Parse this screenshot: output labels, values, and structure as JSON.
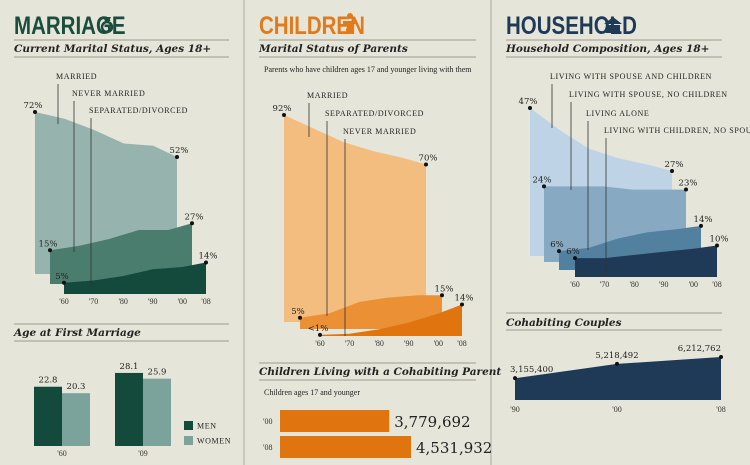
{
  "sections": {
    "marriage": {
      "title": "MARRIAGE",
      "icon": "ring-icon",
      "color": "#1a4d3e"
    },
    "children": {
      "title": "CHILDREN",
      "icon": "baby-icon",
      "color": "#e07a1a"
    },
    "household": {
      "title": "HOUSEHOLD",
      "icon": "house-icon",
      "color": "#1f3a57"
    }
  },
  "chart_data": [
    {
      "id": "marital_status",
      "type": "area",
      "title": "Current Marital Status, Ages 18+",
      "x": [
        "'60",
        "'70",
        "'80",
        "'90",
        "'00",
        "'08"
      ],
      "series": [
        {
          "name": "MARRIED",
          "values": [
            72,
            69,
            64,
            58,
            57,
            52
          ],
          "start_label": "72%",
          "end_label": "52%",
          "color": "#97b3ae"
        },
        {
          "name": "NEVER MARRIED",
          "values": [
            15,
            17,
            20,
            24,
            24,
            27
          ],
          "start_label": "15%",
          "end_label": "27%",
          "color": "#4a7d6e"
        },
        {
          "name": "SEPARATED/DIVORCED",
          "values": [
            5,
            6,
            8,
            11,
            12,
            14
          ],
          "start_label": "5%",
          "end_label": "14%",
          "color": "#134a3b"
        }
      ]
    },
    {
      "id": "age_first_marriage",
      "type": "bar",
      "title": "Age at First Marriage",
      "categories": [
        "'60",
        "'09"
      ],
      "series": [
        {
          "name": "MEN",
          "values": [
            22.8,
            28.1
          ],
          "labels": [
            "22.8",
            "28.1"
          ],
          "color": "#134a3b"
        },
        {
          "name": "WOMEN",
          "values": [
            20.3,
            25.9
          ],
          "labels": [
            "20.3",
            "25.9"
          ],
          "color": "#7ba39b"
        }
      ],
      "legend": "right"
    },
    {
      "id": "parents_status",
      "type": "area",
      "title": "Marital Status of Parents",
      "note": "Parents who have children ages 17 and younger living with them",
      "x": [
        "'60",
        "'70",
        "'80",
        "'90",
        "'00",
        "'08"
      ],
      "series": [
        {
          "name": "MARRIED",
          "values": [
            92,
            86,
            80,
            76,
            73,
            70
          ],
          "start_label": "92%",
          "end_label": "70%",
          "color": "#f2bd7e"
        },
        {
          "name": "SEPARATED/DIVORCED",
          "values": [
            5,
            7,
            12,
            14,
            15,
            15
          ],
          "start_label": "5%",
          "end_label": "15%",
          "color": "#eb9035"
        },
        {
          "name": "NEVER MARRIED",
          "values": [
            0.5,
            1,
            3,
            6,
            10,
            14
          ],
          "start_label": "<1%",
          "end_label": "14%",
          "color": "#e07510"
        }
      ]
    },
    {
      "id": "cohabiting_parent",
      "type": "bar",
      "orientation": "horizontal",
      "title": "Children Living with a Cohabiting Parent",
      "note": "Children ages 17 and younger",
      "categories": [
        "'00",
        "'08"
      ],
      "values": [
        3779692,
        4531932
      ],
      "labels": [
        "3,779,692",
        "4,531,932"
      ],
      "color": "#e07510"
    },
    {
      "id": "household_composition",
      "type": "area",
      "title": "Household Composition, Ages 18+",
      "x": [
        "'60",
        "'70",
        "'80",
        "'90",
        "'00",
        "'08"
      ],
      "series": [
        {
          "name": "LIVING WITH SPOUSE AND CHILDREN",
          "values": [
            47,
            40,
            34,
            31,
            29,
            27
          ],
          "start_label": "47%",
          "end_label": "27%",
          "color": "#bed4e6"
        },
        {
          "name": "LIVING WITH SPOUSE, NO CHILDREN",
          "values": [
            24,
            24,
            24,
            23,
            23,
            23
          ],
          "start_label": "24%",
          "end_label": "23%",
          "color": "#87a9c2"
        },
        {
          "name": "LIVING ALONE",
          "values": [
            6,
            7,
            10,
            12,
            13,
            14
          ],
          "start_label": "6%",
          "end_label": "14%",
          "color": "#52809f"
        },
        {
          "name": "LIVING WITH CHILDREN, NO SPOUSE",
          "values": [
            6,
            6,
            7,
            8,
            9,
            10
          ],
          "start_label": "6%",
          "end_label": "10%",
          "color": "#1f3a57"
        }
      ]
    },
    {
      "id": "cohabiting_couples",
      "type": "area",
      "title": "Cohabiting Couples",
      "x": [
        "'90",
        "'00",
        "'08"
      ],
      "values": [
        3155400,
        5218492,
        6212762
      ],
      "labels": [
        "3,155,400",
        "5,218,492",
        "6,212,762"
      ],
      "color": "#1f3a57"
    }
  ]
}
